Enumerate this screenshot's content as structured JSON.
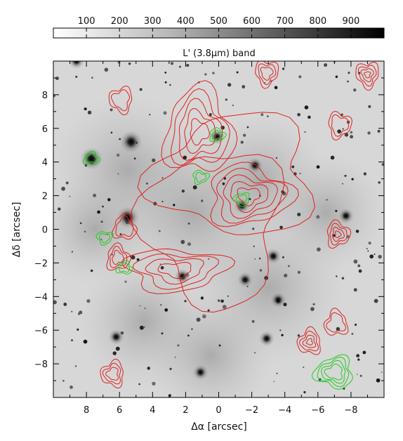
{
  "figure": {
    "colorbar": {
      "tick_labels": [
        "100",
        "200",
        "300",
        "400",
        "500",
        "600",
        "700",
        "800",
        "900"
      ],
      "range": [
        0,
        1000
      ],
      "colormap": "gray-reversed"
    },
    "band_label": "L' (3.8μm) band",
    "x_axis": {
      "label": "Δα [arcsec]",
      "ticks": [
        "8",
        "6",
        "4",
        "2",
        "0",
        "−2",
        "−4",
        "−6",
        "−8"
      ],
      "range": [
        10,
        -10
      ]
    },
    "y_axis": {
      "label": "Δδ [arcsec]",
      "ticks": [
        "8",
        "6",
        "4",
        "2",
        "0",
        "−2",
        "−4",
        "−6",
        "−8"
      ],
      "range": [
        -10,
        10
      ]
    },
    "colors": {
      "red_contours": "#dd2222",
      "green_contours": "#22cc22",
      "frame": "#000000"
    }
  },
  "chart_data": {
    "type": "contour-overlay",
    "image_band": "L' (3.8μm) band",
    "xlim": [
      10,
      -10
    ],
    "ylim": [
      -10,
      10
    ],
    "bright_sources": [
      {
        "x": 5.3,
        "y": 5.2
      },
      {
        "x": 5.5,
        "y": 0.7
      },
      {
        "x": 7.7,
        "y": 4.2
      },
      {
        "x": -2.2,
        "y": 3.8
      },
      {
        "x": -1.4,
        "y": 1.4
      },
      {
        "x": 0.1,
        "y": 5.5
      },
      {
        "x": -3.3,
        "y": -1.6
      },
      {
        "x": 2.2,
        "y": -2.8
      },
      {
        "x": -2.9,
        "y": -6.5
      },
      {
        "x": -7.7,
        "y": 0.8
      },
      {
        "x": 6.2,
        "y": -6.4
      },
      {
        "x": 1.1,
        "y": -8.5
      },
      {
        "x": 8.6,
        "y": 10.0
      },
      {
        "x": -1.6,
        "y": -3.0
      },
      {
        "x": -3.6,
        "y": -4.2
      }
    ],
    "red_contour_centers": [
      {
        "x": 1.2,
        "y": 5.8
      },
      {
        "x": -1.8,
        "y": 2.0
      },
      {
        "x": 2.6,
        "y": -2.4
      },
      {
        "x": 5.7,
        "y": 0.1
      },
      {
        "x": 6.1,
        "y": -1.7
      },
      {
        "x": -7.2,
        "y": -0.3
      },
      {
        "x": -7.3,
        "y": 6.2
      },
      {
        "x": -2.9,
        "y": 9.3
      },
      {
        "x": -9.0,
        "y": 9.2
      },
      {
        "x": 5.9,
        "y": 7.7
      },
      {
        "x": 6.4,
        "y": -8.6
      },
      {
        "x": -5.5,
        "y": -6.7
      },
      {
        "x": -7.1,
        "y": -5.6
      }
    ],
    "green_contour_centers": [
      {
        "x": 7.7,
        "y": 4.2
      },
      {
        "x": 0.1,
        "y": 5.6
      },
      {
        "x": 1.1,
        "y": 3.1
      },
      {
        "x": 6.9,
        "y": -0.5
      },
      {
        "x": -1.4,
        "y": 1.8
      },
      {
        "x": -7.0,
        "y": -8.5
      },
      {
        "x": 5.7,
        "y": -2.3
      }
    ]
  }
}
